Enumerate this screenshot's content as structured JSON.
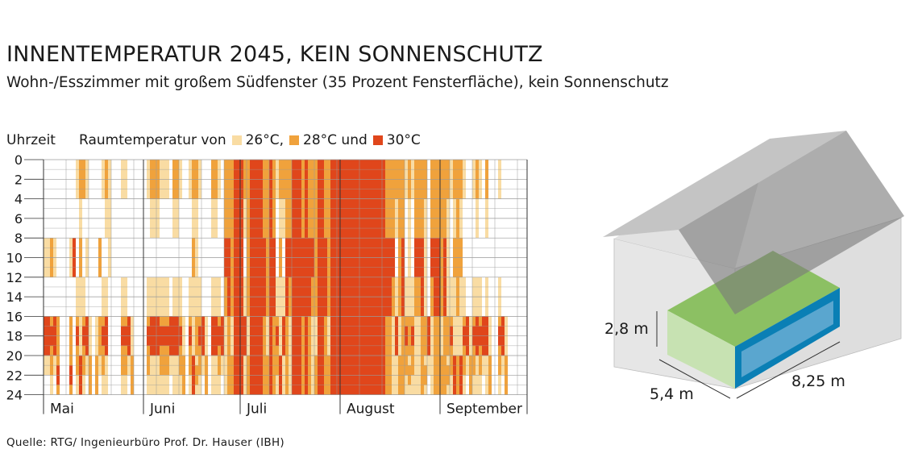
{
  "title": "INNENTEMPERATUR 2045, KEIN SONNENSCHUTZ",
  "subtitle": "Wohn-/Esszimmer mit großem Südfenster (35 Prozent Fensterfläche), kein Sonnenschutz",
  "source": "Quelle: RTG/ Ingenieurbüro Prof. Dr. Hauser (IBH)",
  "colors": {
    "t26": "#f9dca3",
    "t28": "#f0a23c",
    "t30": "#e0461b",
    "grid": "#9a9a9a"
  },
  "house": {
    "height_label": "2,8 m",
    "depth_label": "5,4 m",
    "width_label": "8,25 m",
    "colors": {
      "wall": "#e6e6e6",
      "roof": "#a9a9a9",
      "room_top": "#8cc063",
      "room_side": "#c7e2b2",
      "window": "#5aa6cf",
      "frame": "#0a7fb5"
    }
  },
  "chart_data": {
    "type": "heatmap",
    "ylabel": "Uhrzeit",
    "legend_prefix": "Raumtemperatur von",
    "legend": [
      {
        "label": "26°C,",
        "color": "#f9dca3"
      },
      {
        "label": "28°C und",
        "color": "#f0a23c"
      },
      {
        "label": "30°C",
        "color": "#e0461b"
      }
    ],
    "y_ticks": [
      "0",
      "2",
      "4",
      "6",
      "8",
      "10",
      "12",
      "14",
      "16",
      "18",
      "20",
      "22",
      "24"
    ],
    "y_range": [
      0,
      24
    ],
    "months": [
      {
        "label": "Mai",
        "days": 31
      },
      {
        "label": "Juni",
        "days": 30
      },
      {
        "label": "Juli",
        "days": 31
      },
      {
        "label": "August",
        "days": 31
      },
      {
        "label": "September",
        "days": 30
      }
    ],
    "levels": [
      0,
      26,
      28,
      30
    ],
    "daily_profile": [
      [
        0,
        0,
        1,
        0,
        3,
        6
      ],
      [
        0,
        0,
        1,
        0,
        3,
        6
      ],
      [
        0,
        0,
        2,
        0,
        4,
        8
      ],
      [
        0,
        0,
        1,
        0,
        3,
        6
      ],
      [
        0,
        0,
        0,
        0,
        2,
        4
      ],
      [
        0,
        0,
        0,
        0,
        0,
        0
      ],
      [
        0,
        0,
        0,
        0,
        0,
        0
      ],
      [
        0,
        0,
        0,
        0,
        0,
        0
      ],
      [
        0,
        0,
        1,
        0,
        2,
        4
      ],
      [
        0,
        0,
        3,
        0,
        0,
        0
      ],
      [
        1,
        0,
        0,
        1,
        4,
        8
      ],
      [
        2,
        1,
        2,
        1,
        1,
        3
      ],
      [
        2,
        0,
        0,
        1,
        4,
        8
      ],
      [
        1,
        0,
        1,
        0,
        3,
        6
      ],
      [
        0,
        0,
        0,
        0,
        1,
        2
      ],
      [
        0,
        0,
        0,
        0,
        0,
        0
      ],
      [
        0,
        0,
        0,
        0,
        1,
        2
      ],
      [
        0,
        0,
        2,
        0,
        2,
        6
      ],
      [
        1,
        0,
        0,
        1,
        4,
        8
      ],
      [
        2,
        1,
        0,
        1,
        3,
        7
      ],
      [
        1,
        1,
        1,
        0,
        0,
        0
      ],
      [
        0,
        0,
        0,
        0,
        0,
        0
      ],
      [
        0,
        0,
        0,
        0,
        0,
        0
      ],
      [
        0,
        0,
        0,
        0,
        0,
        0
      ],
      [
        1,
        0,
        0,
        1,
        4,
        8
      ],
      [
        1,
        0,
        0,
        1,
        4,
        8
      ],
      [
        0,
        0,
        0,
        0,
        3,
        6
      ],
      [
        0,
        0,
        0,
        0,
        1,
        2
      ],
      [
        0,
        0,
        0,
        0,
        0,
        0
      ],
      [
        0,
        0,
        0,
        0,
        0,
        0
      ],
      [
        0,
        0,
        0,
        0,
        0,
        0
      ],
      [
        0,
        0,
        0,
        0,
        0,
        0
      ],
      [
        1,
        0,
        0,
        1,
        4,
        8
      ],
      [
        2,
        1,
        0,
        1,
        3,
        7
      ],
      [
        2,
        1,
        0,
        1,
        3,
        7
      ],
      [
        2,
        1,
        0,
        1,
        3,
        7
      ],
      [
        1,
        0,
        0,
        1,
        4,
        8
      ],
      [
        1,
        0,
        0,
        1,
        4,
        8
      ],
      [
        1,
        0,
        0,
        1,
        4,
        8
      ],
      [
        0,
        0,
        0,
        0,
        3,
        6
      ],
      [
        2,
        1,
        0,
        1,
        3,
        7
      ],
      [
        2,
        1,
        0,
        1,
        3,
        7
      ],
      [
        1,
        0,
        0,
        1,
        4,
        8
      ],
      [
        0,
        0,
        0,
        0,
        1,
        2
      ],
      [
        0,
        0,
        0,
        0,
        0,
        0
      ],
      [
        1,
        0,
        0,
        1,
        4,
        8
      ],
      [
        2,
        1,
        2,
        1,
        1,
        3
      ],
      [
        2,
        1,
        1,
        1,
        2,
        5
      ],
      [
        1,
        0,
        0,
        1,
        4,
        8
      ],
      [
        0,
        0,
        0,
        0,
        3,
        6
      ],
      [
        0,
        0,
        0,
        0,
        1,
        2
      ],
      [
        0,
        0,
        0,
        0,
        0,
        0
      ],
      [
        2,
        1,
        0,
        1,
        3,
        7
      ],
      [
        2,
        1,
        0,
        1,
        3,
        7
      ],
      [
        1,
        0,
        0,
        1,
        4,
        8
      ],
      [
        0,
        0,
        0,
        0,
        3,
        6
      ],
      [
        2,
        2,
        3,
        2,
        1,
        1
      ],
      [
        2,
        2,
        3,
        3,
        2,
        2
      ],
      [
        2,
        2,
        2,
        2,
        1,
        2
      ],
      [
        3,
        3,
        3,
        3,
        3,
        3
      ],
      [
        3,
        3,
        3,
        3,
        3,
        3
      ],
      [
        3,
        3,
        3,
        3,
        3,
        3
      ],
      [
        2,
        1,
        0,
        1,
        3,
        7
      ],
      [
        2,
        2,
        2,
        2,
        1,
        2
      ],
      [
        3,
        3,
        3,
        3,
        3,
        3
      ],
      [
        3,
        3,
        3,
        3,
        3,
        3
      ],
      [
        3,
        3,
        3,
        3,
        3,
        3
      ],
      [
        3,
        3,
        3,
        3,
        3,
        3
      ],
      [
        2,
        2,
        3,
        3,
        2,
        2
      ],
      [
        2,
        2,
        2,
        2,
        1,
        2
      ],
      [
        3,
        3,
        3,
        3,
        3,
        3
      ],
      [
        2,
        2,
        3,
        3,
        2,
        2
      ],
      [
        1,
        0,
        0,
        1,
        4,
        8
      ],
      [
        2,
        1,
        2,
        1,
        1,
        3
      ],
      [
        2,
        1,
        0,
        1,
        3,
        7
      ],
      [
        2,
        2,
        3,
        3,
        2,
        2
      ],
      [
        2,
        2,
        3,
        2,
        1,
        1
      ],
      [
        3,
        3,
        3,
        3,
        3,
        3
      ],
      [
        3,
        3,
        3,
        3,
        3,
        3
      ],
      [
        3,
        3,
        3,
        3,
        3,
        3
      ],
      [
        2,
        2,
        3,
        3,
        2,
        2
      ],
      [
        3,
        3,
        3,
        3,
        3,
        3
      ],
      [
        2,
        2,
        3,
        3,
        2,
        2
      ],
      [
        2,
        2,
        3,
        2,
        1,
        1
      ],
      [
        2,
        2,
        2,
        2,
        1,
        2
      ],
      [
        3,
        3,
        3,
        3,
        3,
        3
      ],
      [
        3,
        3,
        3,
        3,
        3,
        3
      ],
      [
        2,
        2,
        3,
        3,
        2,
        2
      ],
      [
        2,
        2,
        2,
        2,
        1,
        2
      ],
      [
        3,
        3,
        3,
        3,
        3,
        3
      ],
      [
        3,
        3,
        3,
        3,
        3,
        3
      ],
      [
        3,
        3,
        3,
        3,
        3,
        3
      ],
      [
        3,
        3,
        3,
        3,
        3,
        3
      ],
      [
        3,
        3,
        3,
        3,
        3,
        3
      ],
      [
        3,
        3,
        3,
        3,
        3,
        3
      ],
      [
        3,
        3,
        3,
        3,
        3,
        3
      ],
      [
        3,
        3,
        3,
        3,
        3,
        3
      ],
      [
        3,
        3,
        3,
        3,
        3,
        3
      ],
      [
        3,
        3,
        3,
        3,
        3,
        3
      ],
      [
        3,
        3,
        3,
        3,
        3,
        3
      ],
      [
        3,
        3,
        3,
        3,
        3,
        3
      ],
      [
        3,
        3,
        3,
        3,
        3,
        3
      ],
      [
        3,
        3,
        3,
        3,
        3,
        3
      ],
      [
        3,
        3,
        3,
        3,
        3,
        3
      ],
      [
        3,
        3,
        3,
        3,
        3,
        3
      ],
      [
        3,
        3,
        3,
        3,
        3,
        3
      ],
      [
        2,
        2,
        3,
        3,
        2,
        2
      ],
      [
        2,
        2,
        3,
        3,
        2,
        2
      ],
      [
        2,
        2,
        3,
        2,
        1,
        1
      ],
      [
        2,
        1,
        0,
        1,
        3,
        7
      ],
      [
        2,
        2,
        2,
        2,
        1,
        2
      ],
      [
        2,
        2,
        3,
        3,
        2,
        2
      ],
      [
        1,
        0,
        0,
        1,
        4,
        8
      ],
      [
        2,
        1,
        1,
        1,
        2,
        5
      ],
      [
        1,
        0,
        0,
        1,
        4,
        8
      ],
      [
        2,
        2,
        3,
        2,
        1,
        1
      ],
      [
        2,
        2,
        3,
        2,
        1,
        1
      ],
      [
        2,
        2,
        3,
        3,
        2,
        2
      ],
      [
        2,
        1,
        1,
        1,
        2,
        5
      ],
      [
        0,
        0,
        0,
        0,
        3,
        6
      ],
      [
        2,
        2,
        3,
        2,
        1,
        1
      ],
      [
        2,
        2,
        3,
        3,
        2,
        2
      ],
      [
        2,
        2,
        3,
        3,
        2,
        2
      ],
      [
        2,
        2,
        2,
        2,
        1,
        2
      ],
      [
        2,
        2,
        3,
        3,
        2,
        2
      ],
      [
        2,
        1,
        1,
        1,
        2,
        5
      ],
      [
        1,
        0,
        0,
        1,
        4,
        8
      ],
      [
        2,
        1,
        2,
        1,
        1,
        3
      ],
      [
        2,
        2,
        2,
        2,
        1,
        2
      ],
      [
        2,
        1,
        2,
        1,
        1,
        3
      ],
      [
        1,
        0,
        0,
        1,
        4,
        8
      ],
      [
        0,
        0,
        0,
        0,
        3,
        6
      ],
      [
        0,
        0,
        0,
        0,
        1,
        2
      ],
      [
        1,
        0,
        0,
        1,
        4,
        8
      ],
      [
        2,
        1,
        0,
        1,
        3,
        7
      ],
      [
        1,
        0,
        0,
        1,
        4,
        8
      ],
      [
        0,
        0,
        0,
        0,
        3,
        6
      ],
      [
        2,
        1,
        0,
        1,
        3,
        7
      ],
      [
        0,
        0,
        0,
        0,
        1,
        2
      ],
      [
        0,
        0,
        0,
        0,
        0,
        0
      ],
      [
        0,
        0,
        0,
        0,
        0,
        0
      ],
      [
        1,
        0,
        0,
        1,
        4,
        8
      ],
      [
        0,
        0,
        0,
        0,
        3,
        6
      ],
      [
        0,
        0,
        0,
        0,
        1,
        2
      ],
      [
        0,
        0,
        0,
        0,
        0,
        0
      ],
      [
        0,
        0,
        0,
        0,
        0,
        0
      ],
      [
        0,
        0,
        0,
        0,
        0,
        0
      ],
      [
        0,
        0,
        0,
        0,
        0,
        0
      ],
      [
        0,
        0,
        0,
        0,
        0,
        0
      ],
      [
        0,
        0,
        0,
        0,
        0,
        0
      ]
    ]
  }
}
